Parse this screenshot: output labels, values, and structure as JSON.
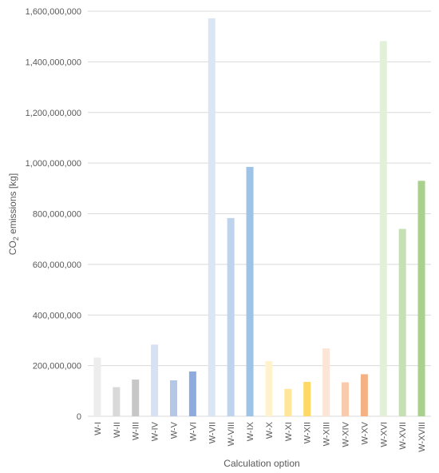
{
  "chart_data": {
    "type": "bar",
    "xlabel": "Calculation option",
    "ylabel": {
      "main": "CO",
      "sub": "2",
      "rest": " emissions [kg]"
    },
    "ylim": [
      0,
      1600000000
    ],
    "yticks": [
      0,
      200000000,
      400000000,
      600000000,
      800000000,
      1000000000,
      1200000000,
      1400000000,
      1600000000
    ],
    "grid": true,
    "categories": [
      "W-I",
      "W-II",
      "W-III",
      "W-IV",
      "W-V",
      "W-VI",
      "W-VII",
      "W-VIII",
      "W-IX",
      "W-X",
      "W-XI",
      "W-XII",
      "W-XIII",
      "W-XIV",
      "W-XV",
      "W-XVI",
      "W-XVII",
      "W-XVIII"
    ],
    "values": [
      232000000,
      115000000,
      145000000,
      283000000,
      142000000,
      177000000,
      1572000000,
      783000000,
      985000000,
      218000000,
      108000000,
      136000000,
      268000000,
      134000000,
      166000000,
      1482000000,
      740000000,
      930000000
    ],
    "colors": [
      "#ededed",
      "#d9d9d9",
      "#c7c7c7",
      "#d6e1f4",
      "#b4c7e7",
      "#8faadc",
      "#dae6f6",
      "#bdd3ee",
      "#9dc3e6",
      "#fff2cc",
      "#ffe699",
      "#ffd966",
      "#fbe5d6",
      "#f8cbad",
      "#f4b183",
      "#e2f0d9",
      "#c5e0b4",
      "#a9d18e"
    ]
  }
}
